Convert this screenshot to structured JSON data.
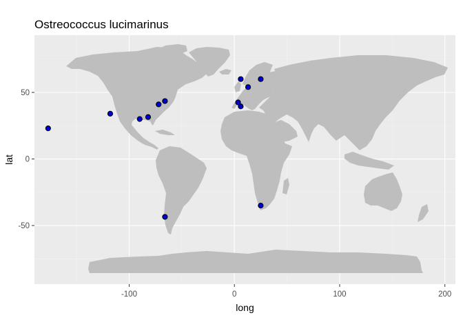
{
  "chart_data": {
    "type": "scatter",
    "title": "Ostreococcus lucimarinus",
    "xlabel": "long",
    "ylabel": "lat",
    "xlim": [
      -190,
      210
    ],
    "ylim": [
      -94,
      93
    ],
    "x_ticks": [
      -100,
      0,
      100,
      200
    ],
    "x_tick_labels": [
      "-100",
      "0",
      "100",
      "200"
    ],
    "y_ticks": [
      -50,
      0,
      50
    ],
    "y_tick_labels": [
      "-50",
      "0",
      "50"
    ],
    "grid": true,
    "background_color": "#ebebeb",
    "land_color": "#bebebe",
    "point_fill": "#0000cd",
    "point_stroke": "#000000",
    "points": [
      {
        "long": -177,
        "lat": 23
      },
      {
        "long": -118,
        "lat": 34
      },
      {
        "long": -90,
        "lat": 30
      },
      {
        "long": -82,
        "lat": 31.5
      },
      {
        "long": -72,
        "lat": 41
      },
      {
        "long": -66,
        "lat": 43.5
      },
      {
        "long": -66,
        "lat": -43.5
      },
      {
        "long": 3.5,
        "lat": 42.5
      },
      {
        "long": 6,
        "lat": 39.5
      },
      {
        "long": 6,
        "lat": 60
      },
      {
        "long": 13,
        "lat": 54
      },
      {
        "long": 25,
        "lat": 60
      },
      {
        "long": 25,
        "lat": -35
      }
    ]
  }
}
